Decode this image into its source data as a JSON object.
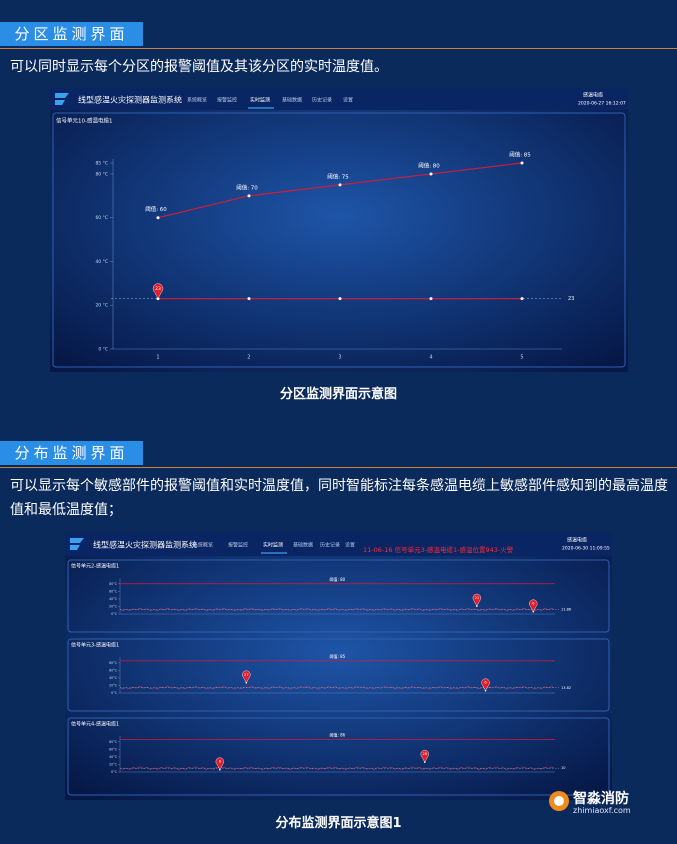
{
  "sections": [
    {
      "title": "分区监测界面",
      "text": "可以同时显示每个分区的报警阈值及其该分区的实时温度值。",
      "caption": "分区监测界面示意图"
    },
    {
      "title": "分布监测界面",
      "text": "可以显示每个敏感部件的报警阈值和实时温度值，同时智能标注每条感温电缆上敏感部件感知到的最高温度值和最低温度值；",
      "caption": "分布监测界面示意图1"
    }
  ],
  "screenshot1": {
    "app_title": "线型感温火灾探测器监测系统",
    "nav": [
      "系统概览",
      "报警监控",
      "实时监测",
      "基础数据",
      "历史记录",
      "设置"
    ],
    "user": "感温电缆",
    "datetime": "2020-06-27 16:12:07",
    "panel_title": "信号单元10-感温电缆1",
    "chart": {
      "type": "line",
      "categories": [
        "1",
        "2",
        "3",
        "4",
        "5"
      ],
      "ylim": [
        0,
        85
      ],
      "yticks": [
        {
          "value": 0,
          "label": "0 °C"
        },
        {
          "value": 20,
          "label": "20 °C"
        },
        {
          "value": 40,
          "label": "40 °C"
        },
        {
          "value": 60,
          "label": "60 °C"
        },
        {
          "value": 80,
          "label": "80 °C"
        },
        {
          "value": 85,
          "label": "85 °C"
        }
      ],
      "threshold": {
        "color": "#d21c3a",
        "values": [
          60,
          70,
          75,
          80,
          85
        ],
        "value_labels": [
          "阈值: 60",
          "阈值: 70",
          "阈值: 75",
          "阈值: 80",
          "阈值: 85"
        ]
      },
      "temperature": {
        "color": "#d21c3a",
        "values": [
          23,
          23,
          23,
          23,
          23
        ],
        "pin_label": "23",
        "end_label": "23"
      }
    }
  },
  "screenshot2": {
    "app_title": "线型感温火灾探测器监测系统",
    "nav": [
      "系统概览",
      "报警监控",
      "实时监测",
      "基础数据",
      "历史记录",
      "设置"
    ],
    "user": "感温电缆",
    "datetime": "2020-06-30 11:09:55",
    "alarm": "11-06-16 信号单元3-感温电缆1-感温位置943-火警",
    "panels": [
      {
        "title": "信号单元2-感温电缆1",
        "threshold": 80,
        "threshold_label": "阈值: 80",
        "ylim": [
          0,
          90
        ],
        "xlim": [
          1,
          1003
        ],
        "yticks": [
          {
            "value": 0,
            "label": "0°C"
          },
          {
            "value": 20,
            "label": "20°C"
          },
          {
            "value": 40,
            "label": "40°C"
          },
          {
            "value": 60,
            "label": "60°C"
          },
          {
            "value": 80,
            "label": "80°C"
          }
        ],
        "max": {
          "x": 823,
          "value": 21,
          "label": "21"
        },
        "min": {
          "x": 953,
          "value": 6,
          "label": "6"
        },
        "end_value": 11.86
      },
      {
        "title": "信号单元3-感温电缆1",
        "threshold": 85,
        "threshold_label": "阈值: 85",
        "ylim": [
          0,
          90
        ],
        "xlim": [
          1,
          1003
        ],
        "yticks": [
          {
            "value": 0,
            "label": "0°C"
          },
          {
            "value": 20,
            "label": "20°C"
          },
          {
            "value": 40,
            "label": "40°C"
          },
          {
            "value": 60,
            "label": "60°C"
          },
          {
            "value": 80,
            "label": "80°C"
          }
        ],
        "max": {
          "x": 292,
          "value": 27,
          "label": "27"
        },
        "min": {
          "x": 843,
          "value": 6,
          "label": "6"
        },
        "end_value": 13.82
      },
      {
        "title": "信号单元4-感温电缆1",
        "threshold": 86,
        "threshold_label": "阈值: 86",
        "ylim": [
          0,
          90
        ],
        "xlim": [
          1,
          1003
        ],
        "yticks": [
          {
            "value": 0,
            "label": "0°C"
          },
          {
            "value": 20,
            "label": "20°C"
          },
          {
            "value": 40,
            "label": "40°C"
          },
          {
            "value": 60,
            "label": "60°C"
          },
          {
            "value": 80,
            "label": "80°C"
          }
        ],
        "max": {
          "x": 703,
          "value": 26,
          "label": "26"
        },
        "min": {
          "x": 231,
          "value": 6,
          "label": "6"
        },
        "end_value": 10
      }
    ]
  },
  "watermark": {
    "name": "智淼消防",
    "url": "zhimiaoxf.com"
  }
}
